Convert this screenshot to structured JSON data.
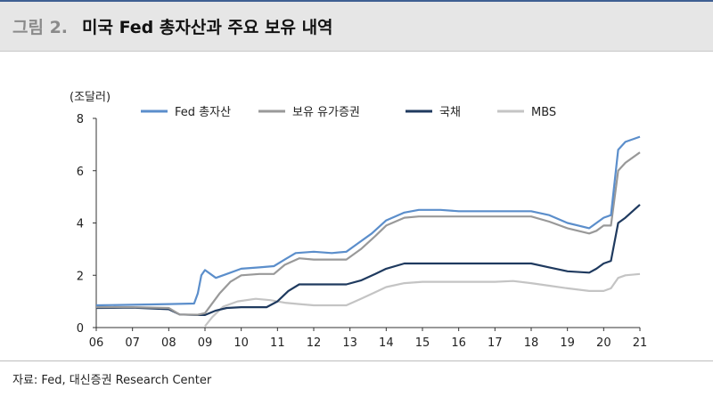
{
  "figure": {
    "number": "그림 2.",
    "title": "미국 Fed 총자산과 주요 보유 내역"
  },
  "source": "자료: Fed, 대신증권 Research Center",
  "chart_data": {
    "type": "line",
    "unit_label": "(조달러)",
    "xlabel": "",
    "ylabel": "",
    "ylim": [
      0,
      8
    ],
    "yticks": [
      "0",
      "2",
      "4",
      "6",
      "8"
    ],
    "xlim": [
      2006,
      2021
    ],
    "xticks": [
      "06",
      "07",
      "08",
      "09",
      "10",
      "11",
      "12",
      "13",
      "14",
      "15",
      "16",
      "17",
      "18",
      "19",
      "20",
      "21"
    ],
    "grid": false,
    "legend_position": "top",
    "series": [
      {
        "name": "Fed 총자산",
        "color": "#5b8ecb",
        "points": [
          [
            2006,
            0.85
          ],
          [
            2007,
            0.87
          ],
          [
            2008,
            0.9
          ],
          [
            2008.7,
            0.92
          ],
          [
            2008.8,
            1.3
          ],
          [
            2008.9,
            2.0
          ],
          [
            2009.0,
            2.2
          ],
          [
            2009.3,
            1.9
          ],
          [
            2009.6,
            2.05
          ],
          [
            2010,
            2.25
          ],
          [
            2010.5,
            2.3
          ],
          [
            2010.9,
            2.35
          ],
          [
            2011.2,
            2.6
          ],
          [
            2011.5,
            2.85
          ],
          [
            2012,
            2.9
          ],
          [
            2012.5,
            2.85
          ],
          [
            2012.9,
            2.9
          ],
          [
            2013.2,
            3.2
          ],
          [
            2013.6,
            3.6
          ],
          [
            2014,
            4.1
          ],
          [
            2014.5,
            4.4
          ],
          [
            2014.9,
            4.5
          ],
          [
            2015.5,
            4.5
          ],
          [
            2016,
            4.45
          ],
          [
            2017,
            4.45
          ],
          [
            2018,
            4.45
          ],
          [
            2018.5,
            4.3
          ],
          [
            2019,
            4.0
          ],
          [
            2019.6,
            3.8
          ],
          [
            2019.8,
            4.0
          ],
          [
            2020.0,
            4.2
          ],
          [
            2020.2,
            4.3
          ],
          [
            2020.4,
            6.8
          ],
          [
            2020.6,
            7.1
          ],
          [
            2021,
            7.3
          ]
        ]
      },
      {
        "name": "보유 유가증권",
        "color": "#999999",
        "points": [
          [
            2006,
            0.78
          ],
          [
            2007,
            0.78
          ],
          [
            2008,
            0.75
          ],
          [
            2008.3,
            0.5
          ],
          [
            2008.8,
            0.49
          ],
          [
            2009.0,
            0.55
          ],
          [
            2009.4,
            1.3
          ],
          [
            2009.7,
            1.75
          ],
          [
            2010,
            2.0
          ],
          [
            2010.5,
            2.05
          ],
          [
            2010.9,
            2.05
          ],
          [
            2011.2,
            2.4
          ],
          [
            2011.6,
            2.65
          ],
          [
            2012,
            2.6
          ],
          [
            2012.5,
            2.6
          ],
          [
            2012.9,
            2.6
          ],
          [
            2013.3,
            3.0
          ],
          [
            2013.7,
            3.5
          ],
          [
            2014,
            3.9
          ],
          [
            2014.5,
            4.2
          ],
          [
            2014.9,
            4.25
          ],
          [
            2016,
            4.25
          ],
          [
            2017,
            4.25
          ],
          [
            2018,
            4.25
          ],
          [
            2018.5,
            4.05
          ],
          [
            2019,
            3.8
          ],
          [
            2019.6,
            3.6
          ],
          [
            2019.8,
            3.7
          ],
          [
            2020.0,
            3.9
          ],
          [
            2020.2,
            3.9
          ],
          [
            2020.4,
            6.0
          ],
          [
            2020.6,
            6.3
          ],
          [
            2021,
            6.7
          ]
        ]
      },
      {
        "name": "국채",
        "color": "#1f3a5f",
        "points": [
          [
            2006,
            0.75
          ],
          [
            2007,
            0.76
          ],
          [
            2008,
            0.7
          ],
          [
            2008.3,
            0.5
          ],
          [
            2008.8,
            0.48
          ],
          [
            2009.0,
            0.48
          ],
          [
            2009.3,
            0.65
          ],
          [
            2009.6,
            0.75
          ],
          [
            2010,
            0.78
          ],
          [
            2010.7,
            0.78
          ],
          [
            2011.0,
            1.0
          ],
          [
            2011.3,
            1.4
          ],
          [
            2011.6,
            1.65
          ],
          [
            2012,
            1.65
          ],
          [
            2012.5,
            1.65
          ],
          [
            2012.9,
            1.65
          ],
          [
            2013.3,
            1.8
          ],
          [
            2013.7,
            2.05
          ],
          [
            2014,
            2.25
          ],
          [
            2014.5,
            2.45
          ],
          [
            2015,
            2.45
          ],
          [
            2016,
            2.45
          ],
          [
            2017,
            2.45
          ],
          [
            2018,
            2.45
          ],
          [
            2018.5,
            2.3
          ],
          [
            2019,
            2.15
          ],
          [
            2019.6,
            2.1
          ],
          [
            2019.8,
            2.25
          ],
          [
            2020.0,
            2.45
          ],
          [
            2020.2,
            2.55
          ],
          [
            2020.4,
            4.0
          ],
          [
            2020.6,
            4.2
          ],
          [
            2021,
            4.7
          ]
        ]
      },
      {
        "name": "MBS",
        "color": "#c4c4c4",
        "points": [
          [
            2009.0,
            0.05
          ],
          [
            2009.2,
            0.4
          ],
          [
            2009.5,
            0.8
          ],
          [
            2009.9,
            1.0
          ],
          [
            2010.4,
            1.1
          ],
          [
            2010.8,
            1.05
          ],
          [
            2011.2,
            0.95
          ],
          [
            2011.6,
            0.9
          ],
          [
            2012,
            0.85
          ],
          [
            2012.5,
            0.85
          ],
          [
            2012.9,
            0.85
          ],
          [
            2013.3,
            1.1
          ],
          [
            2013.7,
            1.35
          ],
          [
            2014,
            1.55
          ],
          [
            2014.5,
            1.7
          ],
          [
            2015,
            1.75
          ],
          [
            2016,
            1.75
          ],
          [
            2017,
            1.75
          ],
          [
            2017.5,
            1.78
          ],
          [
            2018,
            1.7
          ],
          [
            2018.5,
            1.6
          ],
          [
            2019,
            1.5
          ],
          [
            2019.6,
            1.4
          ],
          [
            2019.8,
            1.4
          ],
          [
            2020.0,
            1.4
          ],
          [
            2020.2,
            1.5
          ],
          [
            2020.4,
            1.9
          ],
          [
            2020.6,
            2.0
          ],
          [
            2021,
            2.05
          ]
        ]
      }
    ]
  }
}
